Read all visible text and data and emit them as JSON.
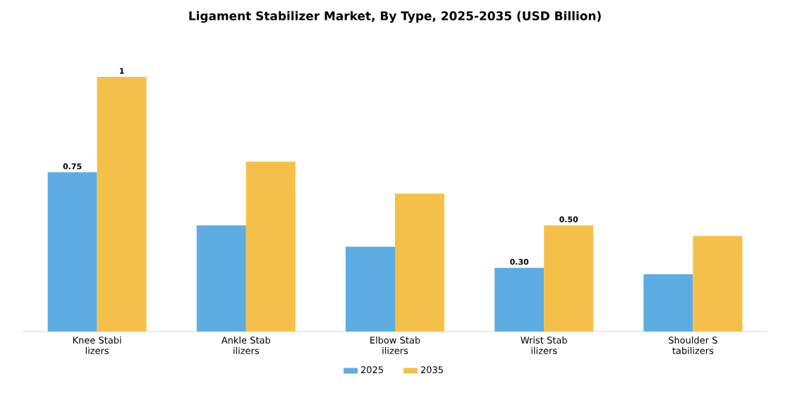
{
  "chart_data": {
    "type": "bar",
    "title": "Ligament Stabilizer Market, By Type, 2025-2035 (USD Billion)",
    "categories": [
      "Knee Stabi lizers",
      "Ankle Stab ilizers",
      "Elbow Stab ilizers",
      "Wrist Stab ilizers",
      "Shoulder S tabilizers"
    ],
    "series": [
      {
        "name": "2025",
        "color": "#5dade2",
        "values": [
          0.75,
          0.5,
          0.4,
          0.3,
          0.27
        ],
        "value_labels": [
          "0.75",
          null,
          null,
          "0.30",
          null
        ]
      },
      {
        "name": "2035",
        "color": "#f5c04a",
        "values": [
          1.2,
          0.8,
          0.65,
          0.5,
          0.45
        ],
        "value_labels": [
          "1",
          null,
          null,
          "0.50",
          null
        ]
      }
    ],
    "legend": "bottom"
  }
}
